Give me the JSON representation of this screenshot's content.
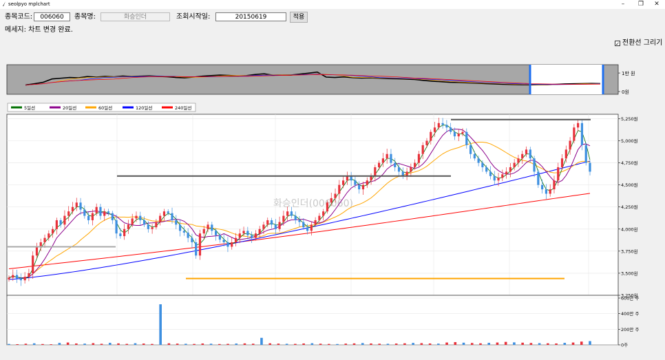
{
  "window": {
    "title": "seolpyo mplchart",
    "minimize": "–",
    "restore": "❐",
    "close": "✕"
  },
  "form": {
    "code_label": "종목코드:",
    "code_value": "006060",
    "name_label": "종목명:",
    "name_value": "화승인더",
    "start_label": "조회시작일:",
    "start_value": "20150619",
    "apply_label": "적용",
    "message": "메세지: 차트 변경 완료.",
    "checkbox_label": "전환선 그리기",
    "checkbox_checked": true
  },
  "colors": {
    "up": "#e8313a",
    "down": "#3d8fe0",
    "ma5": "#007000",
    "ma20": "#8b008b",
    "ma60": "#ffa500",
    "ma120": "#0000ff",
    "ma240": "#ff0000"
  },
  "chart_data": [
    {
      "type": "line",
      "title": "",
      "y_ticks": [
        "1만 원",
        "0원"
      ],
      "ylim": [
        0,
        13000
      ],
      "note": "overview navigator: price over full history, selected range highlighted",
      "series": [
        {
          "values": [
            3500,
            4200,
            5000,
            6800,
            7200,
            7600,
            7400,
            8100,
            7800,
            8200,
            7900,
            8400,
            8100,
            8300,
            8500,
            8200,
            8000,
            7600,
            7400,
            7800,
            8300,
            8600,
            8900,
            8700,
            8400,
            8600,
            9200,
            9600,
            8800,
            9000,
            8900,
            9400,
            9900,
            10500,
            7800,
            7600,
            7900,
            7500,
            7300,
            7400,
            7200,
            7000,
            6900,
            6700,
            6500,
            6000,
            5600,
            5300,
            5000,
            4900,
            4700,
            4500,
            4300,
            4100,
            3900,
            3800,
            3700,
            3600,
            3700,
            3700,
            3900,
            4100,
            4200,
            4300,
            4400,
            4300
          ]
        }
      ],
      "selected_range": "last ~10% of history"
    },
    {
      "type": "line",
      "title": "",
      "watermark": "화승인더(006060)",
      "legend": [
        "5일선",
        "20일선",
        "60일선",
        "120일선",
        "240일선"
      ],
      "legend_position": "top-left",
      "y_ticks": [
        "5,250원",
        "5,000원",
        "4,750원",
        "4,500원",
        "4,250원",
        "4,000원",
        "3,750원",
        "3,500원",
        "3,250원"
      ],
      "ylim": [
        3250,
        5300
      ],
      "grid": true,
      "closes": [
        3450,
        3480,
        3440,
        3420,
        3460,
        3500,
        3700,
        3800,
        3850,
        3900,
        3950,
        4000,
        4100,
        4050,
        4150,
        4200,
        4250,
        4300,
        4220,
        4150,
        4100,
        4180,
        4250,
        4150,
        4200,
        4180,
        4100,
        3950,
        3920,
        4000,
        4050,
        4120,
        4150,
        4100,
        4050,
        4000,
        4020,
        4080,
        4150,
        4200,
        4180,
        4100,
        4050,
        3980,
        3960,
        3900,
        3850,
        3700,
        3950,
        4000,
        4050,
        3980,
        3930,
        3880,
        3850,
        3800,
        3850,
        3900,
        3950,
        3980,
        3930,
        3900,
        3950,
        4000,
        4050,
        4100,
        4050,
        4000,
        4080,
        4150,
        4200,
        4150,
        4100,
        4080,
        4020,
        3980,
        4050,
        4100,
        4150,
        4200,
        4300,
        4350,
        4400,
        4500,
        4550,
        4600,
        4550,
        4500,
        4450,
        4500,
        4550,
        4600,
        4700,
        4750,
        4800,
        4850,
        4750,
        4700,
        4650,
        4600,
        4650,
        4700,
        4750,
        4850,
        4950,
        5000,
        5100,
        5150,
        5200,
        5180,
        5150,
        5100,
        5050,
        5080,
        5100,
        4950,
        4850,
        4800,
        4750,
        4700,
        4650,
        4600,
        4550,
        4580,
        4620,
        4650,
        4700,
        4750,
        4800,
        4850,
        4900,
        4800,
        4650,
        4500,
        4450,
        4400,
        4450,
        4550,
        4700,
        4800,
        4900,
        5000,
        5150,
        5200,
        4950,
        4750,
        4650
      ],
      "reference_lines": [
        {
          "value": 4600,
          "color": "#555555",
          "label": "high-1"
        },
        {
          "value": 5240,
          "color": "#555555",
          "label": "high-2"
        },
        {
          "value": 3800,
          "color": "#aaaaaa",
          "label": "support"
        },
        {
          "value": 3440,
          "color": "#ffa500",
          "label": "low"
        }
      ]
    },
    {
      "type": "bar",
      "title": "",
      "y_ticks": [
        "600만 주",
        "400만 주",
        "200만 주",
        "0주"
      ],
      "ylim": [
        0,
        6000000
      ],
      "values": [
        120000,
        90000,
        150000,
        200000,
        110000,
        80000,
        250000,
        300000,
        180000,
        160000,
        220000,
        140000,
        260000,
        190000,
        130000,
        210000,
        170000,
        120000,
        5200000,
        200000,
        160000,
        140000,
        120000,
        180000,
        150000,
        110000,
        130000,
        170000,
        190000,
        150000,
        900000,
        200000,
        160000,
        140000,
        130000,
        180000,
        210000,
        150000,
        120000,
        110000,
        160000,
        190000,
        230000,
        180000,
        150000,
        140000,
        170000,
        200000,
        250000,
        220000,
        180000,
        160000,
        300000,
        350000,
        280000,
        240000,
        200000,
        260000,
        300000,
        380000,
        320000,
        280000,
        240000,
        220000,
        200000,
        180000,
        260000,
        300000,
        420000,
        480000
      ]
    }
  ]
}
